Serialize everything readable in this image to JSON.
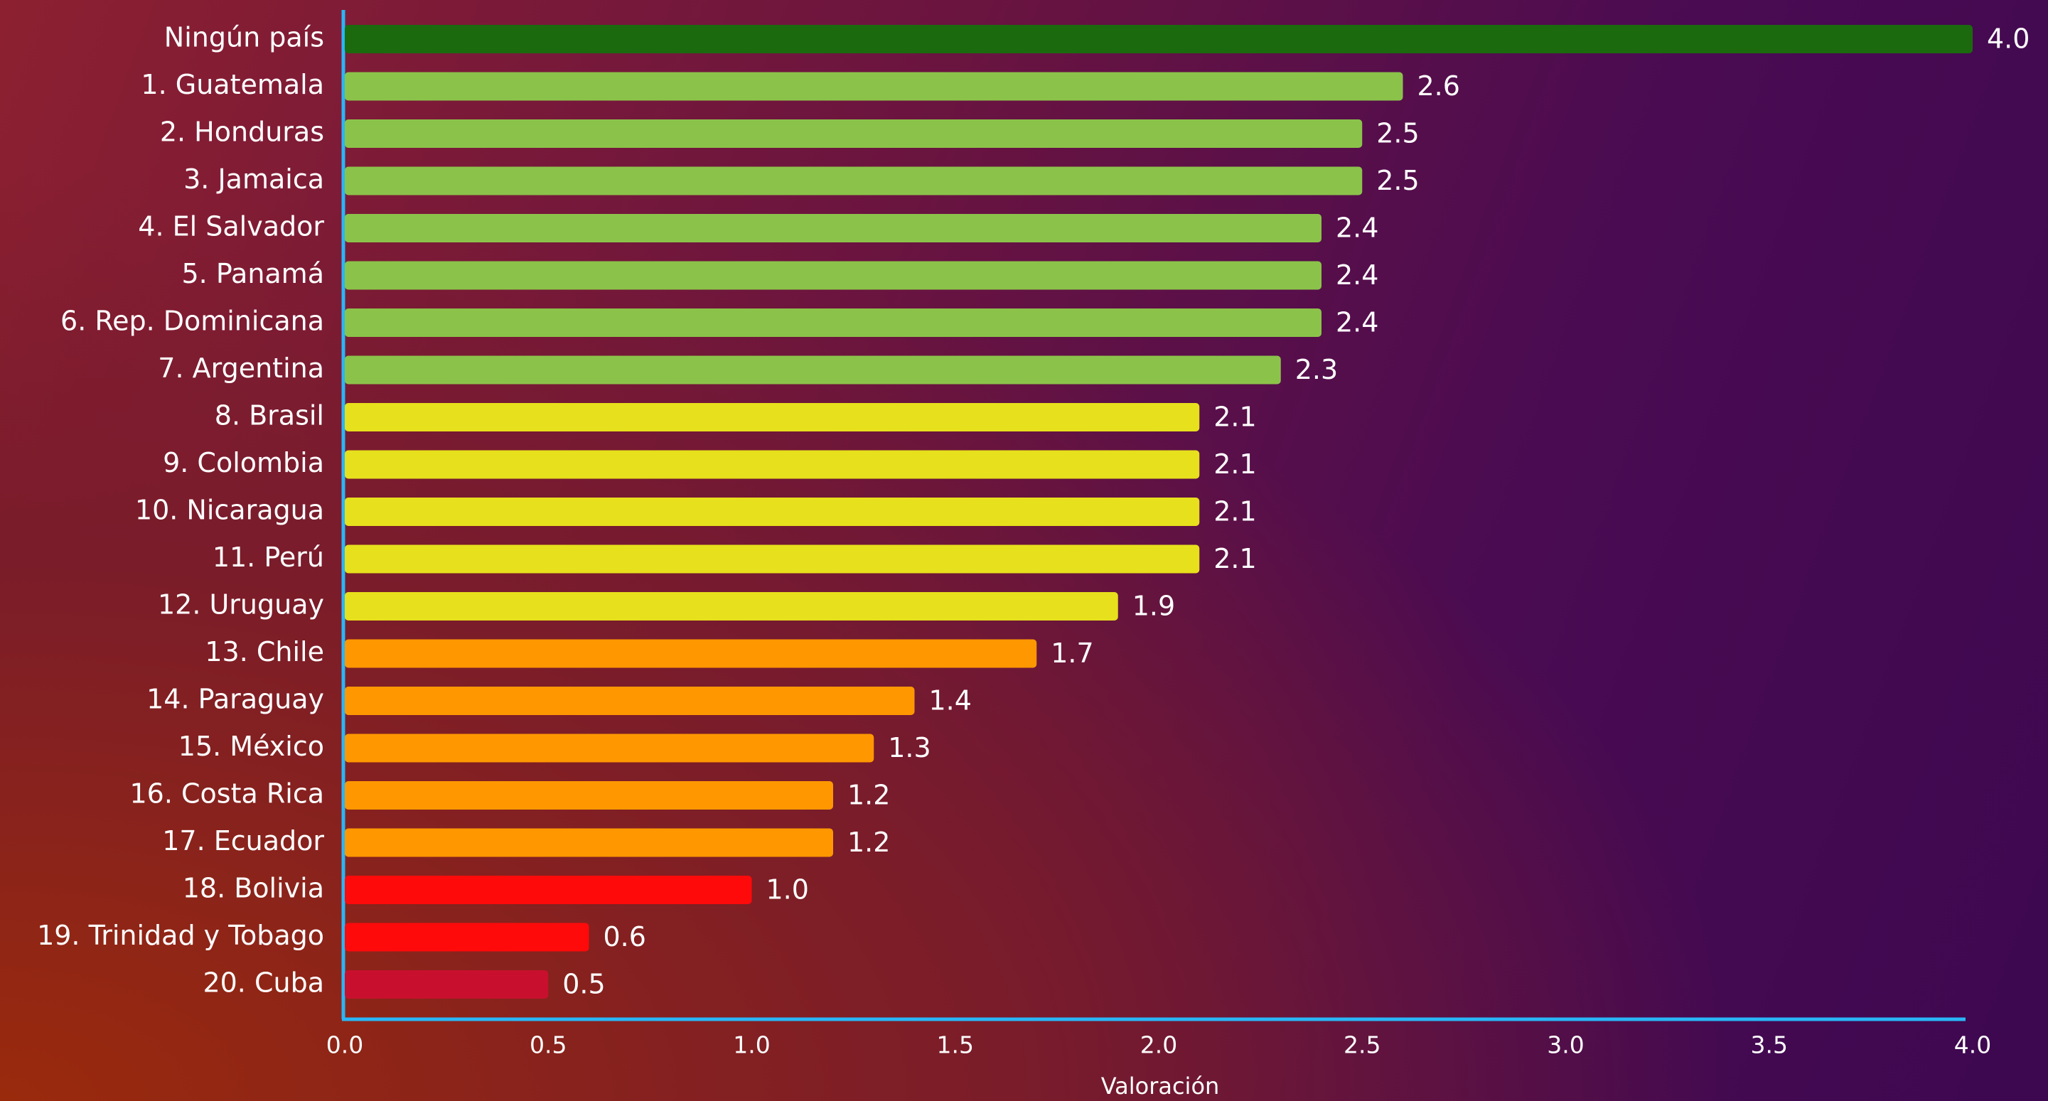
{
  "chart_data": {
    "type": "hbar",
    "categories": [
      "Ningún país",
      "1. Guatemala",
      "2. Honduras",
      "3. Jamaica",
      "4. El Salvador",
      "5. Panamá",
      "6. Rep. Dominicana",
      "7. Argentina",
      "8. Brasil",
      "9. Colombia",
      "10. Nicaragua",
      "11. Perú",
      "12. Uruguay",
      "13. Chile",
      "14. Paraguay",
      "15. México",
      "16. Costa Rica",
      "17. Ecuador",
      "18. Bolivia",
      "19. Trinidad y Tobago",
      "20. Cuba"
    ],
    "values": [
      4.0,
      2.6,
      2.5,
      2.5,
      2.4,
      2.4,
      2.4,
      2.3,
      2.1,
      2.1,
      2.1,
      2.1,
      1.9,
      1.7,
      1.4,
      1.3,
      1.2,
      1.2,
      1.0,
      0.6,
      0.5
    ],
    "value_labels": [
      "4.0",
      "2.6",
      "2.5",
      "2.5",
      "2.4",
      "2.4",
      "2.4",
      "2.3",
      "2.1",
      "2.1",
      "2.1",
      "2.1",
      "1.9",
      "1.7",
      "1.4",
      "1.3",
      "1.2",
      "1.2",
      "1.0",
      "0.6",
      "0.5"
    ],
    "colors": [
      "#1b6a0e",
      "#8bc34a",
      "#8bc34a",
      "#8bc34a",
      "#8bc34a",
      "#8bc34a",
      "#8bc34a",
      "#8bc34a",
      "#e7e01c",
      "#e7e01c",
      "#e7e01c",
      "#e7e01c",
      "#e7e01c",
      "#ff9800",
      "#ff9800",
      "#ff9800",
      "#ff9800",
      "#ff9800",
      "#ff0a0a",
      "#ff0a0a",
      "#c8102e"
    ],
    "xlabel": "Valoración",
    "xlim": [
      0,
      4
    ],
    "xticks": [
      {
        "value": 0,
        "label": "0.0"
      },
      0.5,
      {
        "value": 1,
        "label": "1.0"
      },
      1.5,
      {
        "value": 2,
        "label": "2.0"
      },
      2.5,
      {
        "value": 3,
        "label": "3.0"
      },
      3.5,
      {
        "value": 4,
        "label": "4.0"
      }
    ],
    "grid": false
  }
}
